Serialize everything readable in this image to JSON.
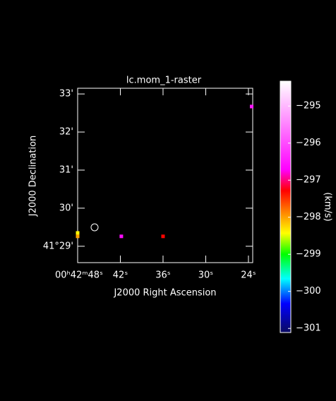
{
  "chart_data": {
    "type": "raster",
    "title": "lc.mom_1-raster",
    "x_label": "J2000 Right Ascension",
    "y_label": "J2000 Declination",
    "colorbar_label": "(km/s)",
    "xlim": [
      48,
      23.4
    ],
    "ylim": [
      28.57,
      33.15
    ],
    "clim": [
      -301.11,
      -294.33
    ],
    "xticks": [
      {
        "value": 48,
        "label": "00ʰ42ᵐ48ˢ"
      },
      {
        "value": 42,
        "label": "42ˢ"
      },
      {
        "value": 36,
        "label": "36ˢ"
      },
      {
        "value": 30,
        "label": "30ˢ"
      },
      {
        "value": 24,
        "label": "24ˢ"
      }
    ],
    "yticks": [
      {
        "value": 29,
        "label": "41°29'"
      },
      {
        "value": 30,
        "label": "30'"
      },
      {
        "value": 31,
        "label": "31'"
      },
      {
        "value": 32,
        "label": "32'"
      },
      {
        "value": 33,
        "label": "33'"
      }
    ],
    "cticks": [
      {
        "value": -295,
        "label": "−295"
      },
      {
        "value": -296,
        "label": "−296"
      },
      {
        "value": -297,
        "label": "−297"
      },
      {
        "value": -298,
        "label": "−298"
      },
      {
        "value": -299,
        "label": "−299"
      },
      {
        "value": -300,
        "label": "−300"
      },
      {
        "value": -301,
        "label": "−301"
      }
    ],
    "colormap": [
      {
        "value": -301.11,
        "color": "#0a0a60"
      },
      {
        "value": -300.33,
        "color": "#0000ff"
      },
      {
        "value": -299.66,
        "color": "#00ffff"
      },
      {
        "value": -299.0,
        "color": "#00ff00"
      },
      {
        "value": -298.43,
        "color": "#ffff00"
      },
      {
        "value": -297.85,
        "color": "#ff8000"
      },
      {
        "value": -297.28,
        "color": "#ff0000"
      },
      {
        "value": -296.71,
        "color": "#ff00ff"
      },
      {
        "value": -294.33,
        "color": "#ffffff"
      }
    ],
    "x": [
      48.0,
      48.0,
      41.86,
      36.0,
      23.55
    ],
    "y": [
      29.35,
      29.26,
      29.26,
      29.26,
      32.67
    ],
    "values": [
      -298.4,
      -298.0,
      -296.6,
      -297.3,
      -296.5
    ]
  }
}
